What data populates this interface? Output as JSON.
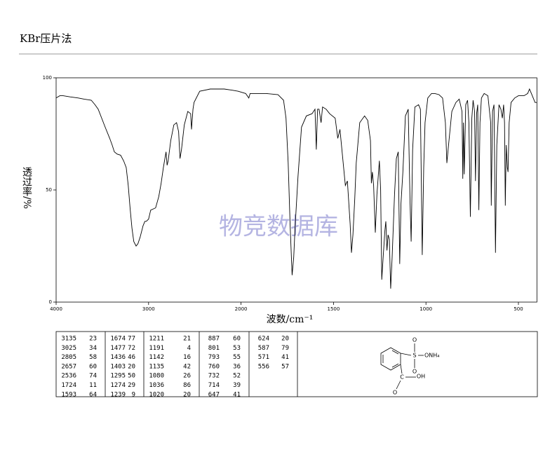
{
  "header": {
    "title": "KBr压片法"
  },
  "chart_data": {
    "type": "line",
    "x_label": "波数/cm⁻¹",
    "y_label": "透过率/%",
    "watermark": "物竞数据库",
    "xlim": [
      4000,
      400
    ],
    "xticks": [
      4000,
      3000,
      2000,
      1500,
      1000,
      500
    ],
    "ylim": [
      0,
      100
    ],
    "yticks": [
      0,
      50,
      100
    ],
    "color": "#000000",
    "x": [
      4000,
      3960,
      3924,
      3850,
      3760,
      3697,
      3620,
      3580,
      3545,
      3470,
      3420,
      3394,
      3370,
      3340,
      3303,
      3270,
      3242,
      3220,
      3200,
      3180,
      3160,
      3135,
      3115,
      3091,
      3060,
      3040,
      3025,
      3000,
      2977,
      2924,
      2890,
      2864,
      2840,
      2811,
      2800,
      2788,
      2760,
      2727,
      2697,
      2675,
      2660,
      2644,
      2614,
      2576,
      2545,
      2536,
      2520,
      2508,
      2447,
      2333,
      2182,
      2100,
      2030,
      1975,
      1958,
      1951,
      1863,
      1800,
      1770,
      1757,
      1745,
      1735,
      1724,
      1715,
      1708,
      1692,
      1673,
      1647,
      1616,
      1600,
      1593,
      1586,
      1578,
      1567,
      1559,
      1540,
      1521,
      1491,
      1477,
      1465,
      1450,
      1436,
      1425,
      1410,
      1403,
      1395,
      1385,
      1377,
      1358,
      1332,
      1315,
      1300,
      1295,
      1290,
      1283,
      1274,
      1265,
      1252,
      1245,
      1239,
      1230,
      1222,
      1217,
      1211,
      1205,
      1198,
      1191,
      1183,
      1170,
      1160,
      1150,
      1142,
      1135,
      1125,
      1111,
      1096,
      1086,
      1080,
      1072,
      1060,
      1040,
      1030,
      1020,
      1012,
      1005,
      990,
      970,
      952,
      930,
      910,
      895,
      887,
      878,
      860,
      838,
      820,
      805,
      801,
      797,
      793,
      785,
      775,
      768,
      760,
      752,
      745,
      737,
      732,
      726,
      720,
      714,
      708,
      700,
      685,
      665,
      650,
      647,
      640,
      632,
      624,
      617,
      605,
      595,
      587,
      580,
      575,
      571,
      566,
      560,
      556,
      550,
      540,
      520,
      500,
      470,
      450,
      440,
      430,
      410,
      400
    ],
    "values": [
      91,
      92,
      92,
      91.5,
      91,
      90.5,
      90,
      88,
      86,
      78,
      73,
      70,
      67,
      66,
      65.5,
      63,
      60,
      52,
      42,
      33,
      27,
      25,
      26,
      29,
      34,
      36,
      36,
      37,
      41,
      42,
      47,
      53,
      60,
      67,
      61,
      63,
      72,
      79,
      80,
      76,
      64,
      68,
      79,
      85,
      84,
      77,
      86,
      89,
      94,
      95,
      95,
      94.5,
      94,
      93,
      91,
      93,
      93,
      92.5,
      90,
      82,
      62,
      35,
      12,
      20,
      33,
      56,
      78,
      83,
      84,
      86,
      68,
      86,
      86,
      80,
      87,
      86,
      84,
      82,
      73,
      77,
      64,
      52,
      54,
      35,
      22,
      30,
      46,
      62,
      80,
      83,
      81,
      72,
      53,
      58,
      52,
      31,
      48,
      63,
      50,
      10,
      22,
      32,
      36,
      23,
      30,
      28,
      6,
      20,
      48,
      64,
      67,
      17,
      44,
      58,
      83,
      86,
      45,
      27,
      68,
      87,
      88,
      86,
      21,
      60,
      80,
      91,
      93,
      93,
      92.5,
      91,
      80,
      62,
      70,
      85,
      89,
      90.5,
      85,
      55,
      80,
      57,
      88,
      90,
      80,
      38,
      82,
      90,
      85,
      54,
      84,
      88,
      41,
      80,
      91,
      93,
      92,
      80,
      43,
      85,
      88,
      22,
      70,
      88,
      86,
      82,
      88,
      80,
      43,
      70,
      60,
      58,
      80,
      89,
      91,
      92,
      92,
      93,
      95,
      93,
      89,
      89
    ]
  },
  "peak_table": {
    "columns": [
      [
        [
          3135,
          23
        ],
        [
          3025,
          34
        ],
        [
          2805,
          58
        ],
        [
          2657,
          60
        ],
        [
          2536,
          74
        ],
        [
          1724,
          11
        ],
        [
          1593,
          64
        ]
      ],
      [
        [
          1674,
          77
        ],
        [
          1477,
          72
        ],
        [
          1436,
          46
        ],
        [
          1403,
          20
        ],
        [
          1295,
          50
        ],
        [
          1274,
          29
        ],
        [
          1239,
          9
        ]
      ],
      [
        [
          1211,
          21
        ],
        [
          1191,
          4
        ],
        [
          1142,
          16
        ],
        [
          1135,
          42
        ],
        [
          1080,
          26
        ],
        [
          1036,
          86
        ],
        [
          1020,
          20
        ]
      ],
      [
        [
          887,
          60
        ],
        [
          801,
          53
        ],
        [
          793,
          55
        ],
        [
          760,
          36
        ],
        [
          732,
          52
        ],
        [
          714,
          39
        ],
        [
          647,
          41
        ]
      ],
      [
        [
          624,
          20
        ],
        [
          587,
          79
        ],
        [
          571,
          41
        ],
        [
          556,
          57
        ]
      ]
    ]
  },
  "structure": {
    "labels": [
      "O",
      "S",
      "ONH₄",
      "O",
      "C",
      "OH",
      "O"
    ]
  }
}
